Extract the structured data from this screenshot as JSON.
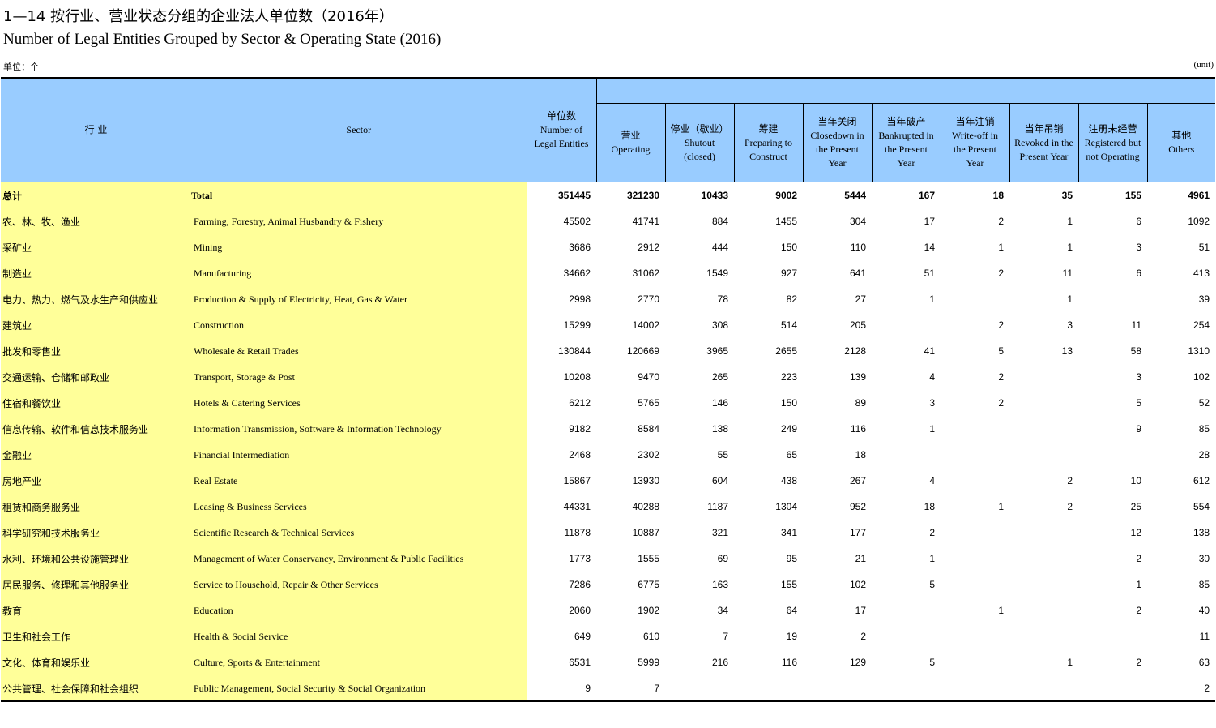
{
  "title_cn": "1—14  按行业、营业状态分组的企业法人单位数（2016年）",
  "title_en": "Number of Legal Entities Grouped by Sector & Operating State (2016)",
  "unit_cn": "单位：个",
  "unit_en": "(unit)",
  "header": {
    "industry": "行  业",
    "sector": "Sector",
    "columns": [
      {
        "cn": "单位数",
        "en1": "Number of",
        "en2": "Legal Entities",
        "en3": ""
      },
      {
        "cn": "营业",
        "en1": "Operating",
        "en2": "",
        "en3": ""
      },
      {
        "cn": "停业（歇业）",
        "en1": "Shutout",
        "en2": "(closed)",
        "en3": ""
      },
      {
        "cn": "筹建",
        "en1": "Preparing to",
        "en2": "Construct",
        "en3": ""
      },
      {
        "cn": "当年关闭",
        "en1": "Closedown in",
        "en2": "the Present",
        "en3": "Year"
      },
      {
        "cn": "当年破产",
        "en1": "Bankrupted in",
        "en2": "the Present",
        "en3": "Year"
      },
      {
        "cn": "当年注销",
        "en1": "Write-off in",
        "en2": "the Present",
        "en3": "Year"
      },
      {
        "cn": "当年吊销",
        "en1": "Revoked in the",
        "en2": "Present Year",
        "en3": ""
      },
      {
        "cn": "注册未经营",
        "en1": "Registered but",
        "en2": "not Operating",
        "en3": ""
      },
      {
        "cn": "其他",
        "en1": "Others",
        "en2": "",
        "en3": ""
      }
    ]
  },
  "rows": [
    {
      "cn": "总计",
      "en": "Total",
      "v": [
        "351445",
        "321230",
        "10433",
        "9002",
        "5444",
        "167",
        "18",
        "35",
        "155",
        "4961"
      ]
    },
    {
      "cn": "农、林、牧、渔业",
      "en": "Farming, Forestry, Animal Husbandry & Fishery",
      "v": [
        "45502",
        "41741",
        "884",
        "1455",
        "304",
        "17",
        "2",
        "1",
        "6",
        "1092"
      ]
    },
    {
      "cn": "采矿业",
      "en": "Mining",
      "v": [
        "3686",
        "2912",
        "444",
        "150",
        "110",
        "14",
        "1",
        "1",
        "3",
        "51"
      ]
    },
    {
      "cn": "制造业",
      "en": "Manufacturing",
      "v": [
        "34662",
        "31062",
        "1549",
        "927",
        "641",
        "51",
        "2",
        "11",
        "6",
        "413"
      ]
    },
    {
      "cn": "电力、热力、燃气及水生产和供应业",
      "en": "Production & Supply of Electricity, Heat, Gas & Water",
      "v": [
        "2998",
        "2770",
        "78",
        "82",
        "27",
        "1",
        "",
        "1",
        "",
        "39"
      ]
    },
    {
      "cn": "建筑业",
      "en": "Construction",
      "v": [
        "15299",
        "14002",
        "308",
        "514",
        "205",
        "",
        "2",
        "3",
        "11",
        "254"
      ]
    },
    {
      "cn": "批发和零售业",
      "en": "Wholesale & Retail Trades",
      "v": [
        "130844",
        "120669",
        "3965",
        "2655",
        "2128",
        "41",
        "5",
        "13",
        "58",
        "1310"
      ]
    },
    {
      "cn": "交通运输、仓储和邮政业",
      "en": "Transport, Storage & Post",
      "v": [
        "10208",
        "9470",
        "265",
        "223",
        "139",
        "4",
        "2",
        "",
        "3",
        "102"
      ]
    },
    {
      "cn": "住宿和餐饮业",
      "en": "Hotels & Catering Services",
      "v": [
        "6212",
        "5765",
        "146",
        "150",
        "89",
        "3",
        "2",
        "",
        "5",
        "52"
      ]
    },
    {
      "cn": "信息传输、软件和信息技术服务业",
      "en": "Information Transmission, Software & Information Technology",
      "v": [
        "9182",
        "8584",
        "138",
        "249",
        "116",
        "1",
        "",
        "",
        "9",
        "85"
      ]
    },
    {
      "cn": "金融业",
      "en": "Financial Intermediation",
      "v": [
        "2468",
        "2302",
        "55",
        "65",
        "18",
        "",
        "",
        "",
        "",
        "28"
      ]
    },
    {
      "cn": "房地产业",
      "en": "Real Estate",
      "v": [
        "15867",
        "13930",
        "604",
        "438",
        "267",
        "4",
        "",
        "2",
        "10",
        "612"
      ]
    },
    {
      "cn": "租赁和商务服务业",
      "en": "Leasing & Business Services",
      "v": [
        "44331",
        "40288",
        "1187",
        "1304",
        "952",
        "18",
        "1",
        "2",
        "25",
        "554"
      ]
    },
    {
      "cn": "科学研究和技术服务业",
      "en": "Scientific Research & Technical Services",
      "v": [
        "11878",
        "10887",
        "321",
        "341",
        "177",
        "2",
        "",
        "",
        "12",
        "138"
      ]
    },
    {
      "cn": "水利、环境和公共设施管理业",
      "en": "Management of Water Conservancy, Environment & Public Facilities",
      "v": [
        "1773",
        "1555",
        "69",
        "95",
        "21",
        "1",
        "",
        "",
        "2",
        "30"
      ]
    },
    {
      "cn": "居民服务、修理和其他服务业",
      "en": "Service to Household, Repair & Other Services",
      "v": [
        "7286",
        "6775",
        "163",
        "155",
        "102",
        "5",
        "",
        "",
        "1",
        "85"
      ]
    },
    {
      "cn": "教育",
      "en": "Education",
      "v": [
        "2060",
        "1902",
        "34",
        "64",
        "17",
        "",
        "1",
        "",
        "2",
        "40"
      ]
    },
    {
      "cn": "卫生和社会工作",
      "en": "Health & Social Service",
      "v": [
        "649",
        "610",
        "7",
        "19",
        "2",
        "",
        "",
        "",
        "",
        "11"
      ]
    },
    {
      "cn": "文化、体育和娱乐业",
      "en": "Culture, Sports & Entertainment",
      "v": [
        "6531",
        "5999",
        "216",
        "116",
        "129",
        "5",
        "",
        "1",
        "2",
        "63"
      ]
    },
    {
      "cn": "公共管理、社会保障和社会组织",
      "en": "Public Management, Social Security & Social Organization",
      "v": [
        "9",
        "7",
        "",
        "",
        "",
        "",
        "",
        "",
        "",
        "2"
      ]
    }
  ]
}
